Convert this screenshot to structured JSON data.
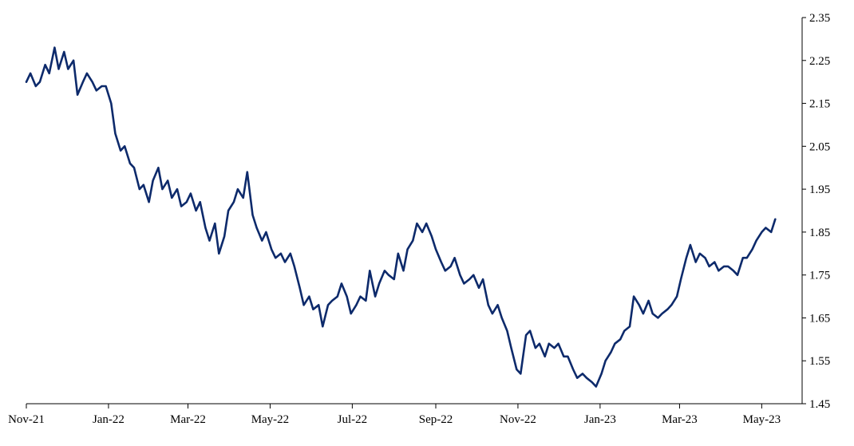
{
  "chart_data": {
    "type": "line",
    "title": "",
    "xlabel": "",
    "ylabel": "",
    "x_range": [
      "2021-11-01",
      "2023-05-31"
    ],
    "ylim": [
      1.45,
      2.35
    ],
    "y_ticks": [
      "1.45",
      "1.55",
      "1.65",
      "1.75",
      "1.85",
      "1.95",
      "2.05",
      "2.15",
      "2.25",
      "2.35"
    ],
    "x_ticks": [
      {
        "date": "2021-11-01",
        "label": "Nov-21"
      },
      {
        "date": "2022-01-01",
        "label": "Jan-22"
      },
      {
        "date": "2022-03-01",
        "label": "Mar-22"
      },
      {
        "date": "2022-05-01",
        "label": "May-22"
      },
      {
        "date": "2022-07-01",
        "label": "Jul-22"
      },
      {
        "date": "2022-09-01",
        "label": "Sep-22"
      },
      {
        "date": "2022-11-01",
        "label": "Nov-22"
      },
      {
        "date": "2023-01-01",
        "label": "Jan-23"
      },
      {
        "date": "2023-03-01",
        "label": "Mar-23"
      },
      {
        "date": "2023-05-01",
        "label": "May-23"
      }
    ],
    "y_axis_position": "right",
    "grid": false,
    "legend": "none",
    "color": "#0d2a6b",
    "series": [
      {
        "points": [
          [
            "2021-11-01",
            2.2
          ],
          [
            "2021-11-04",
            2.22
          ],
          [
            "2021-11-08",
            2.19
          ],
          [
            "2021-11-11",
            2.2
          ],
          [
            "2021-11-15",
            2.24
          ],
          [
            "2021-11-18",
            2.22
          ],
          [
            "2021-11-22",
            2.28
          ],
          [
            "2021-11-25",
            2.23
          ],
          [
            "2021-11-29",
            2.27
          ],
          [
            "2021-12-02",
            2.23
          ],
          [
            "2021-12-06",
            2.25
          ],
          [
            "2021-12-09",
            2.17
          ],
          [
            "2021-12-13",
            2.2
          ],
          [
            "2021-12-16",
            2.22
          ],
          [
            "2021-12-20",
            2.2
          ],
          [
            "2021-12-23",
            2.18
          ],
          [
            "2021-12-27",
            2.19
          ],
          [
            "2021-12-30",
            2.19
          ],
          [
            "2022-01-03",
            2.15
          ],
          [
            "2022-01-06",
            2.08
          ],
          [
            "2022-01-10",
            2.04
          ],
          [
            "2022-01-13",
            2.05
          ],
          [
            "2022-01-17",
            2.01
          ],
          [
            "2022-01-20",
            2.0
          ],
          [
            "2022-01-24",
            1.95
          ],
          [
            "2022-01-27",
            1.96
          ],
          [
            "2022-01-31",
            1.92
          ],
          [
            "2022-02-03",
            1.97
          ],
          [
            "2022-02-07",
            2.0
          ],
          [
            "2022-02-10",
            1.95
          ],
          [
            "2022-02-14",
            1.97
          ],
          [
            "2022-02-17",
            1.93
          ],
          [
            "2022-02-21",
            1.95
          ],
          [
            "2022-02-24",
            1.91
          ],
          [
            "2022-02-28",
            1.92
          ],
          [
            "2022-03-03",
            1.94
          ],
          [
            "2022-03-07",
            1.9
          ],
          [
            "2022-03-10",
            1.92
          ],
          [
            "2022-03-14",
            1.86
          ],
          [
            "2022-03-17",
            1.83
          ],
          [
            "2022-03-21",
            1.87
          ],
          [
            "2022-03-24",
            1.8
          ],
          [
            "2022-03-28",
            1.84
          ],
          [
            "2022-03-31",
            1.9
          ],
          [
            "2022-04-04",
            1.92
          ],
          [
            "2022-04-07",
            1.95
          ],
          [
            "2022-04-11",
            1.93
          ],
          [
            "2022-04-14",
            1.99
          ],
          [
            "2022-04-18",
            1.89
          ],
          [
            "2022-04-21",
            1.86
          ],
          [
            "2022-04-25",
            1.83
          ],
          [
            "2022-04-28",
            1.85
          ],
          [
            "2022-05-02",
            1.81
          ],
          [
            "2022-05-05",
            1.79
          ],
          [
            "2022-05-09",
            1.8
          ],
          [
            "2022-05-12",
            1.78
          ],
          [
            "2022-05-16",
            1.8
          ],
          [
            "2022-05-19",
            1.77
          ],
          [
            "2022-05-23",
            1.72
          ],
          [
            "2022-05-26",
            1.68
          ],
          [
            "2022-05-30",
            1.7
          ],
          [
            "2022-06-02",
            1.67
          ],
          [
            "2022-06-06",
            1.68
          ],
          [
            "2022-06-09",
            1.63
          ],
          [
            "2022-06-13",
            1.68
          ],
          [
            "2022-06-16",
            1.69
          ],
          [
            "2022-06-20",
            1.7
          ],
          [
            "2022-06-23",
            1.73
          ],
          [
            "2022-06-27",
            1.7
          ],
          [
            "2022-06-30",
            1.66
          ],
          [
            "2022-07-04",
            1.68
          ],
          [
            "2022-07-07",
            1.7
          ],
          [
            "2022-07-11",
            1.69
          ],
          [
            "2022-07-14",
            1.76
          ],
          [
            "2022-07-18",
            1.7
          ],
          [
            "2022-07-21",
            1.73
          ],
          [
            "2022-07-25",
            1.76
          ],
          [
            "2022-07-28",
            1.75
          ],
          [
            "2022-08-01",
            1.74
          ],
          [
            "2022-08-04",
            1.8
          ],
          [
            "2022-08-08",
            1.76
          ],
          [
            "2022-08-11",
            1.81
          ],
          [
            "2022-08-15",
            1.83
          ],
          [
            "2022-08-18",
            1.87
          ],
          [
            "2022-08-22",
            1.85
          ],
          [
            "2022-08-25",
            1.87
          ],
          [
            "2022-08-29",
            1.84
          ],
          [
            "2022-09-01",
            1.81
          ],
          [
            "2022-09-05",
            1.78
          ],
          [
            "2022-09-08",
            1.76
          ],
          [
            "2022-09-12",
            1.77
          ],
          [
            "2022-09-15",
            1.79
          ],
          [
            "2022-09-19",
            1.75
          ],
          [
            "2022-09-22",
            1.73
          ],
          [
            "2022-09-26",
            1.74
          ],
          [
            "2022-09-29",
            1.75
          ],
          [
            "2022-10-03",
            1.72
          ],
          [
            "2022-10-06",
            1.74
          ],
          [
            "2022-10-10",
            1.68
          ],
          [
            "2022-10-13",
            1.66
          ],
          [
            "2022-10-17",
            1.68
          ],
          [
            "2022-10-20",
            1.65
          ],
          [
            "2022-10-24",
            1.62
          ],
          [
            "2022-10-27",
            1.58
          ],
          [
            "2022-10-31",
            1.53
          ],
          [
            "2022-11-03",
            1.52
          ],
          [
            "2022-11-07",
            1.61
          ],
          [
            "2022-11-10",
            1.62
          ],
          [
            "2022-11-14",
            1.58
          ],
          [
            "2022-11-17",
            1.59
          ],
          [
            "2022-11-21",
            1.56
          ],
          [
            "2022-11-24",
            1.59
          ],
          [
            "2022-11-28",
            1.58
          ],
          [
            "2022-12-01",
            1.59
          ],
          [
            "2022-12-05",
            1.56
          ],
          [
            "2022-12-08",
            1.56
          ],
          [
            "2022-12-12",
            1.53
          ],
          [
            "2022-12-15",
            1.51
          ],
          [
            "2022-12-19",
            1.52
          ],
          [
            "2022-12-22",
            1.51
          ],
          [
            "2022-12-26",
            1.5
          ],
          [
            "2022-12-29",
            1.49
          ],
          [
            "2023-01-02",
            1.52
          ],
          [
            "2023-01-05",
            1.55
          ],
          [
            "2023-01-09",
            1.57
          ],
          [
            "2023-01-12",
            1.59
          ],
          [
            "2023-01-16",
            1.6
          ],
          [
            "2023-01-19",
            1.62
          ],
          [
            "2023-01-23",
            1.63
          ],
          [
            "2023-01-26",
            1.7
          ],
          [
            "2023-01-30",
            1.68
          ],
          [
            "2023-02-02",
            1.66
          ],
          [
            "2023-02-06",
            1.69
          ],
          [
            "2023-02-09",
            1.66
          ],
          [
            "2023-02-13",
            1.65
          ],
          [
            "2023-02-16",
            1.66
          ],
          [
            "2023-02-20",
            1.67
          ],
          [
            "2023-02-23",
            1.68
          ],
          [
            "2023-02-27",
            1.7
          ],
          [
            "2023-03-02",
            1.74
          ],
          [
            "2023-03-06",
            1.79
          ],
          [
            "2023-03-09",
            1.82
          ],
          [
            "2023-03-13",
            1.78
          ],
          [
            "2023-03-16",
            1.8
          ],
          [
            "2023-03-20",
            1.79
          ],
          [
            "2023-03-23",
            1.77
          ],
          [
            "2023-03-27",
            1.78
          ],
          [
            "2023-03-30",
            1.76
          ],
          [
            "2023-04-03",
            1.77
          ],
          [
            "2023-04-06",
            1.77
          ],
          [
            "2023-04-10",
            1.76
          ],
          [
            "2023-04-13",
            1.75
          ],
          [
            "2023-04-17",
            1.79
          ],
          [
            "2023-04-20",
            1.79
          ],
          [
            "2023-04-24",
            1.81
          ],
          [
            "2023-04-27",
            1.83
          ],
          [
            "2023-05-01",
            1.85
          ],
          [
            "2023-05-04",
            1.86
          ],
          [
            "2023-05-08",
            1.85
          ],
          [
            "2023-05-11",
            1.88
          ]
        ]
      }
    ]
  }
}
